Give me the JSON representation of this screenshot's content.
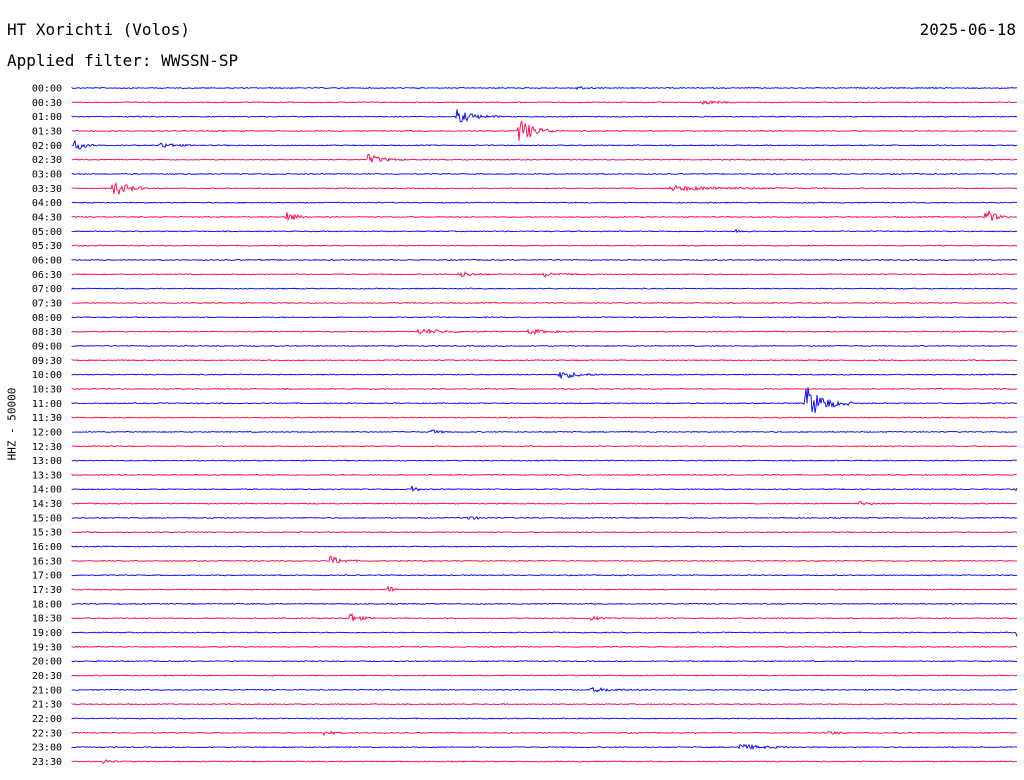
{
  "header": {
    "station": "HT Xorichti (Volos)",
    "date": "2025-06-18",
    "filter": "Applied filter: WWSSN-SP"
  },
  "chart_data": {
    "type": "line",
    "ylabel": "HHZ - 50000",
    "colors": [
      "#0000ee",
      "#ff0044"
    ],
    "ticks": [
      "00:00",
      "00:30",
      "01:00",
      "01:30",
      "02:00",
      "02:30",
      "03:00",
      "03:30",
      "04:00",
      "04:30",
      "05:00",
      "05:30",
      "06:00",
      "06:30",
      "07:00",
      "07:30",
      "08:00",
      "08:30",
      "09:00",
      "09:30",
      "10:00",
      "10:30",
      "11:00",
      "11:30",
      "12:00",
      "12:30",
      "13:00",
      "13:30",
      "14:00",
      "14:30",
      "15:00",
      "15:30",
      "16:00",
      "16:30",
      "17:00",
      "17:30",
      "18:00",
      "18:30",
      "19:00",
      "19:30",
      "20:00",
      "20:30",
      "21:00",
      "21:30",
      "22:00",
      "22:30",
      "23:00",
      "23:30"
    ],
    "events": [
      {
        "trace": 0,
        "minute": 16.0,
        "amp": 0.35,
        "dur": 0.8
      },
      {
        "trace": 1,
        "minute": 20.0,
        "amp": 0.45,
        "dur": 1.2
      },
      {
        "trace": 2,
        "minute": 12.2,
        "amp": 1.2,
        "dur": 1.5
      },
      {
        "trace": 3,
        "minute": 14.2,
        "amp": 2.3,
        "dur": 1.2
      },
      {
        "trace": 4,
        "minute": 0.1,
        "amp": 0.9,
        "dur": 0.8
      },
      {
        "trace": 4,
        "minute": 2.8,
        "amp": 0.5,
        "dur": 1.2
      },
      {
        "trace": 5,
        "minute": 9.4,
        "amp": 0.9,
        "dur": 1.2
      },
      {
        "trace": 7,
        "minute": 1.3,
        "amp": 1.5,
        "dur": 1.2
      },
      {
        "trace": 7,
        "minute": 19.0,
        "amp": 0.4,
        "dur": 5.0
      },
      {
        "trace": 9,
        "minute": 6.8,
        "amp": 0.9,
        "dur": 0.8
      },
      {
        "trace": 9,
        "minute": 29.0,
        "amp": 1.4,
        "dur": 0.8
      },
      {
        "trace": 10,
        "minute": 21.0,
        "amp": 0.35,
        "dur": 0.8
      },
      {
        "trace": 13,
        "minute": 12.3,
        "amp": 0.5,
        "dur": 1.0
      },
      {
        "trace": 13,
        "minute": 15.0,
        "amp": 0.4,
        "dur": 1.2
      },
      {
        "trace": 17,
        "minute": 11.0,
        "amp": 0.45,
        "dur": 2.2
      },
      {
        "trace": 17,
        "minute": 14.5,
        "amp": 0.45,
        "dur": 1.5
      },
      {
        "trace": 20,
        "minute": 15.5,
        "amp": 0.7,
        "dur": 1.5
      },
      {
        "trace": 22,
        "minute": 23.3,
        "amp": 3.0,
        "dur": 1.5
      },
      {
        "trace": 24,
        "minute": 11.4,
        "amp": 0.45,
        "dur": 0.6
      },
      {
        "trace": 28,
        "minute": 10.8,
        "amp": 0.9,
        "dur": 0.3
      },
      {
        "trace": 28,
        "minute": 30.0,
        "amp": 0.8,
        "dur": 0.6
      },
      {
        "trace": 29,
        "minute": 25.0,
        "amp": 0.35,
        "dur": 1.0
      },
      {
        "trace": 30,
        "minute": 12.5,
        "amp": 0.35,
        "dur": 1.0
      },
      {
        "trace": 33,
        "minute": 8.2,
        "amp": 0.8,
        "dur": 1.0
      },
      {
        "trace": 35,
        "minute": 10.0,
        "amp": 0.7,
        "dur": 0.6
      },
      {
        "trace": 37,
        "minute": 8.8,
        "amp": 1.0,
        "dur": 0.8
      },
      {
        "trace": 37,
        "minute": 16.5,
        "amp": 0.5,
        "dur": 0.5
      },
      {
        "trace": 38,
        "minute": 30.0,
        "amp": 1.6,
        "dur": 1.0
      },
      {
        "trace": 42,
        "minute": 16.5,
        "amp": 0.35,
        "dur": 1.8
      },
      {
        "trace": 45,
        "minute": 8.0,
        "amp": 0.4,
        "dur": 0.8
      },
      {
        "trace": 45,
        "minute": 24.0,
        "amp": 0.4,
        "dur": 0.8
      },
      {
        "trace": 46,
        "minute": 21.2,
        "amp": 0.5,
        "dur": 2.0
      },
      {
        "trace": 47,
        "minute": 1.0,
        "amp": 0.5,
        "dur": 0.5
      }
    ]
  }
}
